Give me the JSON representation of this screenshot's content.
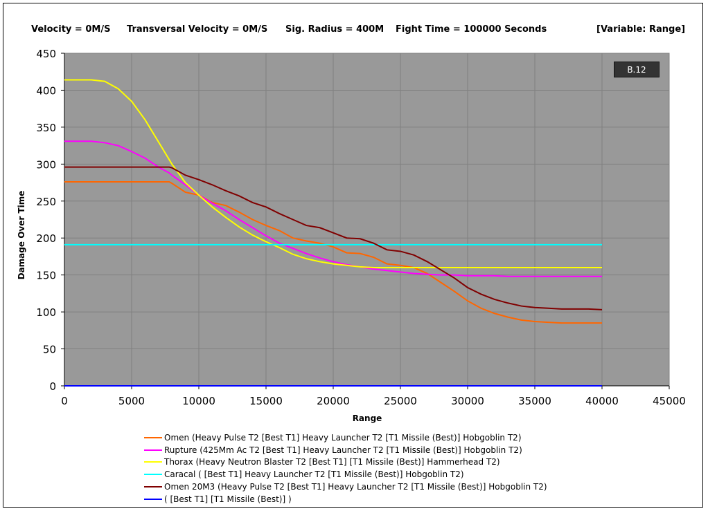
{
  "header": {
    "velocity": "Velocity = 0M/S",
    "transversal": "Transversal Velocity = 0M/S",
    "sig_radius": "Sig. Radius = 400M",
    "fight_time": "Fight Time = 100000 Seconds",
    "variable": "[Variable: Range]"
  },
  "badge": "B.12",
  "chart_data": {
    "type": "line",
    "xlabel": "Range",
    "ylabel": "Damage Over Time",
    "xlim": [
      0,
      45000
    ],
    "ylim": [
      0,
      450
    ],
    "xticks": [
      0,
      5000,
      10000,
      15000,
      20000,
      25000,
      30000,
      35000,
      40000,
      45000
    ],
    "yticks": [
      0,
      50,
      100,
      150,
      200,
      250,
      300,
      350,
      400,
      450
    ],
    "grid": true,
    "legend_position": "bottom",
    "x": [
      0,
      2000,
      3000,
      4000,
      5000,
      6000,
      7000,
      7800,
      8000,
      9000,
      10000,
      11000,
      12000,
      13000,
      14000,
      15000,
      16000,
      17000,
      18000,
      19000,
      20000,
      21000,
      22000,
      23000,
      24000,
      25000,
      26000,
      27000,
      28000,
      29000,
      30000,
      31000,
      32000,
      33000,
      34000,
      35000,
      36000,
      37000,
      38000,
      39000,
      40000
    ],
    "series": [
      {
        "name": "Omen (Heavy Pulse T2 [Best T1] Heavy Launcher T2 [T1 Missile (Best)] Hobgoblin T2)",
        "color": "#ff6600",
        "values": [
          276,
          276,
          276,
          276,
          276,
          276,
          276,
          276,
          274,
          262,
          258,
          248,
          244,
          235,
          225,
          217,
          210,
          200,
          196,
          193,
          188,
          180,
          179,
          174,
          165,
          163,
          160,
          152,
          140,
          128,
          115,
          105,
          98,
          93,
          89,
          87,
          86,
          85,
          85,
          85,
          85
        ]
      },
      {
        "name": "Rupture (425Mm Ac T2 [Best T1] Heavy Launcher T2 [T1 Missile (Best)] Hobgoblin T2)",
        "color": "#ff00ff",
        "values": [
          331,
          331,
          329,
          325,
          317,
          308,
          296,
          288,
          285,
          272,
          258,
          247,
          237,
          225,
          214,
          203,
          193,
          186,
          179,
          173,
          168,
          164,
          161,
          158,
          156,
          154,
          152,
          151,
          150,
          150,
          149,
          149,
          149,
          148,
          148,
          148,
          148,
          148,
          148,
          148,
          148
        ]
      },
      {
        "name": "Thorax (Heavy Neutron Blaster T2 [Best T1] [T1 Missile (Best)] Hammerhead T2)",
        "color": "#ffff00",
        "values": [
          414,
          414,
          412,
          402,
          385,
          360,
          330,
          306,
          300,
          275,
          258,
          242,
          228,
          215,
          204,
          195,
          187,
          178,
          172,
          168,
          165,
          163,
          161,
          160,
          160,
          160,
          160,
          160,
          160,
          160,
          160,
          160,
          160,
          160,
          160,
          160,
          160,
          160,
          160,
          160,
          160
        ]
      },
      {
        "name": "Caracal ( [Best T1] Heavy Launcher T2 [T1 Missile (Best)] Hobgoblin T2)",
        "color": "#00ffff",
        "values": [
          191,
          191,
          191,
          191,
          191,
          191,
          191,
          191,
          191,
          191,
          191,
          191,
          191,
          191,
          191,
          191,
          191,
          191,
          191,
          191,
          191,
          191,
          191,
          191,
          191,
          191,
          191,
          191,
          191,
          191,
          191,
          191,
          191,
          191,
          191,
          191,
          191,
          191,
          191,
          191,
          191
        ]
      },
      {
        "name": "Omen 20M3 (Heavy Pulse T2 [Best T1] Heavy Launcher T2 [T1 Missile (Best)] Hobgoblin T2)",
        "color": "#800000",
        "values": [
          296,
          296,
          296,
          296,
          296,
          296,
          296,
          296,
          295,
          285,
          279,
          272,
          264,
          257,
          248,
          242,
          233,
          225,
          217,
          214,
          207,
          200,
          199,
          193,
          184,
          182,
          177,
          168,
          157,
          146,
          133,
          124,
          117,
          112,
          108,
          106,
          105,
          104,
          104,
          104,
          103
        ]
      },
      {
        "name": "( [Best T1] [T1 Missile (Best)] )",
        "color": "#0000ff",
        "values": [
          0,
          0,
          0,
          0,
          0,
          0,
          0,
          0,
          0,
          0,
          0,
          0,
          0,
          0,
          0,
          0,
          0,
          0,
          0,
          0,
          0,
          0,
          0,
          0,
          0,
          0,
          0,
          0,
          0,
          0,
          0,
          0,
          0,
          0,
          0,
          0,
          0,
          0,
          0,
          0,
          0
        ]
      }
    ]
  }
}
